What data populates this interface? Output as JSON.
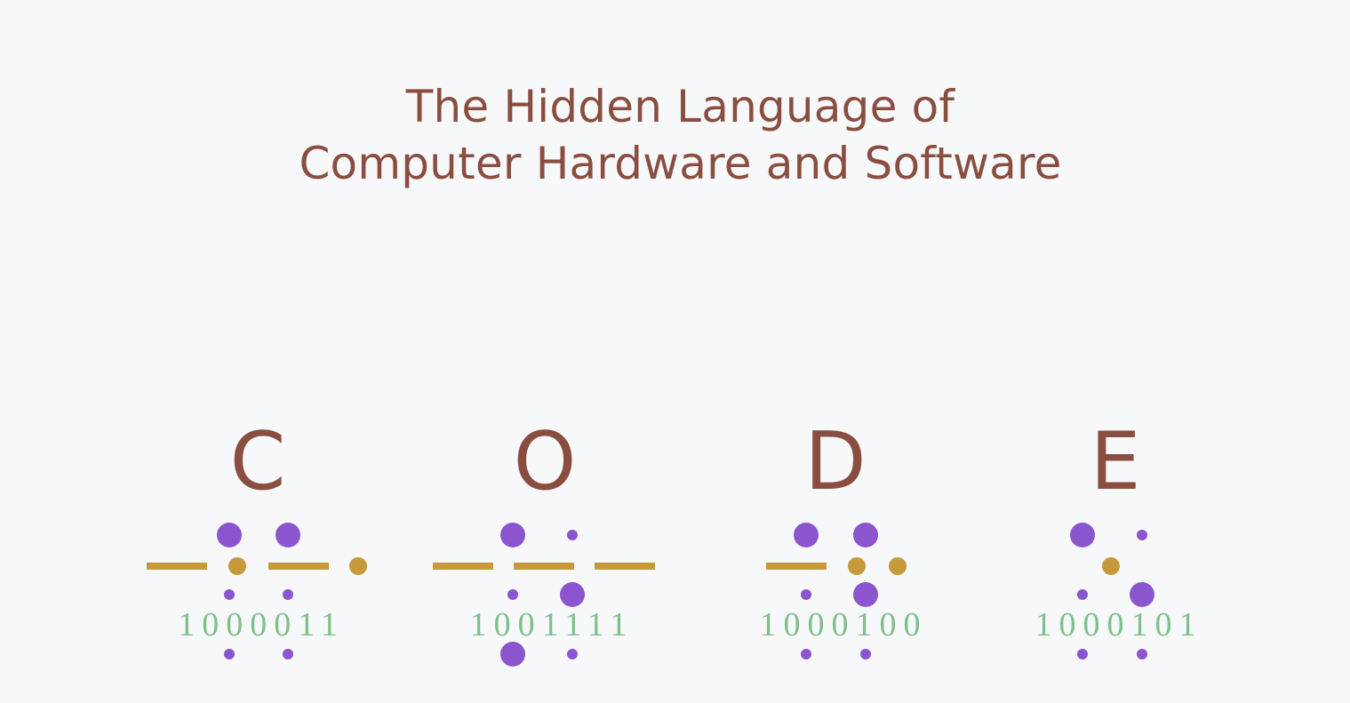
{
  "title": {
    "line1": "The Hidden Language of",
    "line2": "Computer Hardware and Software"
  },
  "word": [
    {
      "letter": "C",
      "binary": "1000011"
    },
    {
      "letter": "O",
      "binary": "1001111"
    },
    {
      "letter": "D",
      "binary": "1000100"
    },
    {
      "letter": "E",
      "binary": "1000101"
    }
  ],
  "colors": {
    "text": "#8a4e40",
    "braille_dot": "#8a55cf",
    "morse": "#c69a3b",
    "binary": "#7ec08a",
    "background": "#f7f8f9"
  }
}
